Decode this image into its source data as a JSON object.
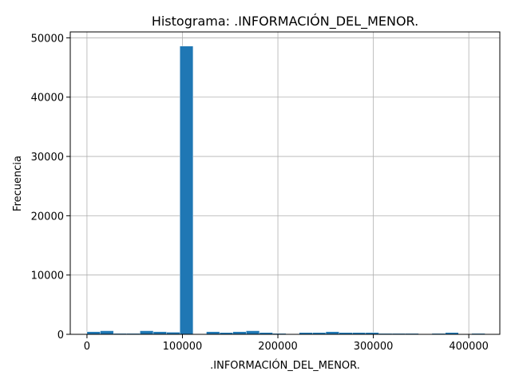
{
  "chart_data": {
    "type": "bar",
    "title": "Histograma: .INFORMACIÓN_DEL_MENOR.",
    "xlabel": ".INFORMACIÓN_DEL_MENOR.",
    "ylabel": "Frecuencia",
    "xlim": [
      -17500,
      432500
    ],
    "ylim": [
      0,
      51000
    ],
    "xticks": [
      0,
      100000,
      200000,
      300000,
      400000
    ],
    "yticks": [
      0,
      10000,
      20000,
      30000,
      40000,
      50000
    ],
    "grid": true,
    "bar_color": "#1f77b4",
    "bins": [
      {
        "x0": 0,
        "x1": 13900,
        "count": 450
      },
      {
        "x0": 13900,
        "x1": 27800,
        "count": 600
      },
      {
        "x0": 27800,
        "x1": 41700,
        "count": 150
      },
      {
        "x0": 41700,
        "x1": 55600,
        "count": 150
      },
      {
        "x0": 55600,
        "x1": 69500,
        "count": 600
      },
      {
        "x0": 69500,
        "x1": 83400,
        "count": 450
      },
      {
        "x0": 83400,
        "x1": 97300,
        "count": 350
      },
      {
        "x0": 97300,
        "x1": 111200,
        "count": 48600
      },
      {
        "x0": 111200,
        "x1": 125100,
        "count": 50
      },
      {
        "x0": 125100,
        "x1": 139000,
        "count": 450
      },
      {
        "x0": 139000,
        "x1": 152900,
        "count": 300
      },
      {
        "x0": 152900,
        "x1": 166800,
        "count": 450
      },
      {
        "x0": 166800,
        "x1": 180700,
        "count": 600
      },
      {
        "x0": 180700,
        "x1": 194600,
        "count": 300
      },
      {
        "x0": 194600,
        "x1": 208500,
        "count": 150
      },
      {
        "x0": 208500,
        "x1": 222400,
        "count": 50
      },
      {
        "x0": 222400,
        "x1": 236300,
        "count": 300
      },
      {
        "x0": 236300,
        "x1": 250200,
        "count": 300
      },
      {
        "x0": 250200,
        "x1": 264100,
        "count": 450
      },
      {
        "x0": 264100,
        "x1": 278000,
        "count": 300
      },
      {
        "x0": 278000,
        "x1": 291900,
        "count": 300
      },
      {
        "x0": 291900,
        "x1": 305800,
        "count": 300
      },
      {
        "x0": 305800,
        "x1": 319700,
        "count": 150
      },
      {
        "x0": 319700,
        "x1": 333600,
        "count": 150
      },
      {
        "x0": 333600,
        "x1": 347500,
        "count": 150
      },
      {
        "x0": 347500,
        "x1": 361400,
        "count": 50
      },
      {
        "x0": 361400,
        "x1": 375300,
        "count": 150
      },
      {
        "x0": 375300,
        "x1": 389200,
        "count": 300
      },
      {
        "x0": 389200,
        "x1": 403100,
        "count": 50
      },
      {
        "x0": 403100,
        "x1": 417000,
        "count": 150
      }
    ]
  }
}
